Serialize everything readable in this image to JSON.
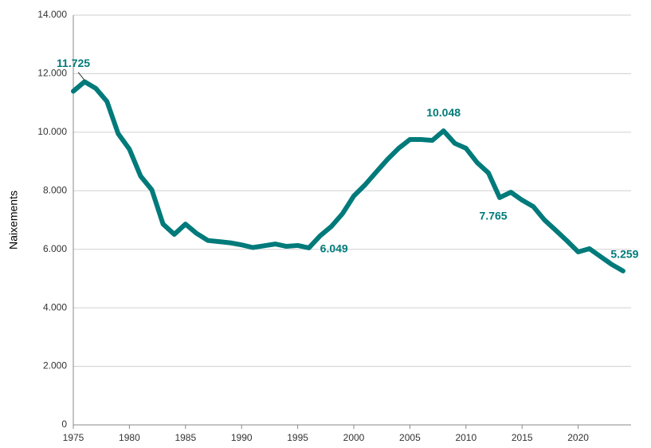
{
  "chart_data": {
    "type": "line",
    "y_label": "Naixements",
    "x": [
      1975,
      1976,
      1977,
      1978,
      1979,
      1980,
      1981,
      1982,
      1983,
      1984,
      1985,
      1986,
      1987,
      1988,
      1989,
      1990,
      1991,
      1992,
      1993,
      1994,
      1995,
      1996,
      1997,
      1998,
      1999,
      2000,
      2001,
      2002,
      2003,
      2004,
      2005,
      2006,
      2007,
      2008,
      2009,
      2010,
      2011,
      2012,
      2013,
      2014,
      2015,
      2016,
      2017,
      2018,
      2019,
      2020,
      2021,
      2022,
      2023,
      2024
    ],
    "series": [
      {
        "name": "Naixements",
        "color": "#007a7a",
        "values": [
          11400,
          11725,
          11500,
          11050,
          9950,
          9420,
          8500,
          8030,
          6860,
          6510,
          6860,
          6540,
          6300,
          6260,
          6220,
          6150,
          6060,
          6120,
          6180,
          6100,
          6130,
          6049,
          6460,
          6780,
          7220,
          7820,
          8200,
          8640,
          9070,
          9450,
          9750,
          9750,
          9720,
          10048,
          9620,
          9450,
          8960,
          8610,
          7765,
          7950,
          7680,
          7460,
          7000,
          6650,
          6290,
          5910,
          6020,
          5750,
          5480,
          5259
        ],
        "value_labels": [
          null,
          "11.725",
          null,
          null,
          null,
          null,
          null,
          null,
          null,
          null,
          null,
          null,
          null,
          null,
          null,
          null,
          null,
          null,
          null,
          null,
          null,
          "6.049",
          null,
          null,
          null,
          null,
          null,
          null,
          null,
          null,
          null,
          null,
          null,
          "10.048",
          null,
          null,
          null,
          null,
          "7.765",
          null,
          null,
          null,
          null,
          null,
          null,
          null,
          null,
          null,
          null,
          "5.259"
        ]
      }
    ],
    "xlim": [
      1975,
      2025
    ],
    "xticks": [
      1975,
      1980,
      1985,
      1990,
      1995,
      2000,
      2005,
      2010,
      2015,
      2020
    ],
    "ylim": [
      0,
      14000
    ],
    "yticks": [
      {
        "value": 0,
        "label": "0"
      },
      {
        "value": 2000,
        "label": "2.000"
      },
      {
        "value": 4000,
        "label": "4.000"
      },
      {
        "value": 6000,
        "label": "6.000"
      },
      {
        "value": 8000,
        "label": "8.000"
      },
      {
        "value": 10000,
        "label": "10.000"
      },
      {
        "value": 12000,
        "label": "12.000"
      },
      {
        "value": 14000,
        "label": "14.000"
      }
    ],
    "grid": true
  }
}
